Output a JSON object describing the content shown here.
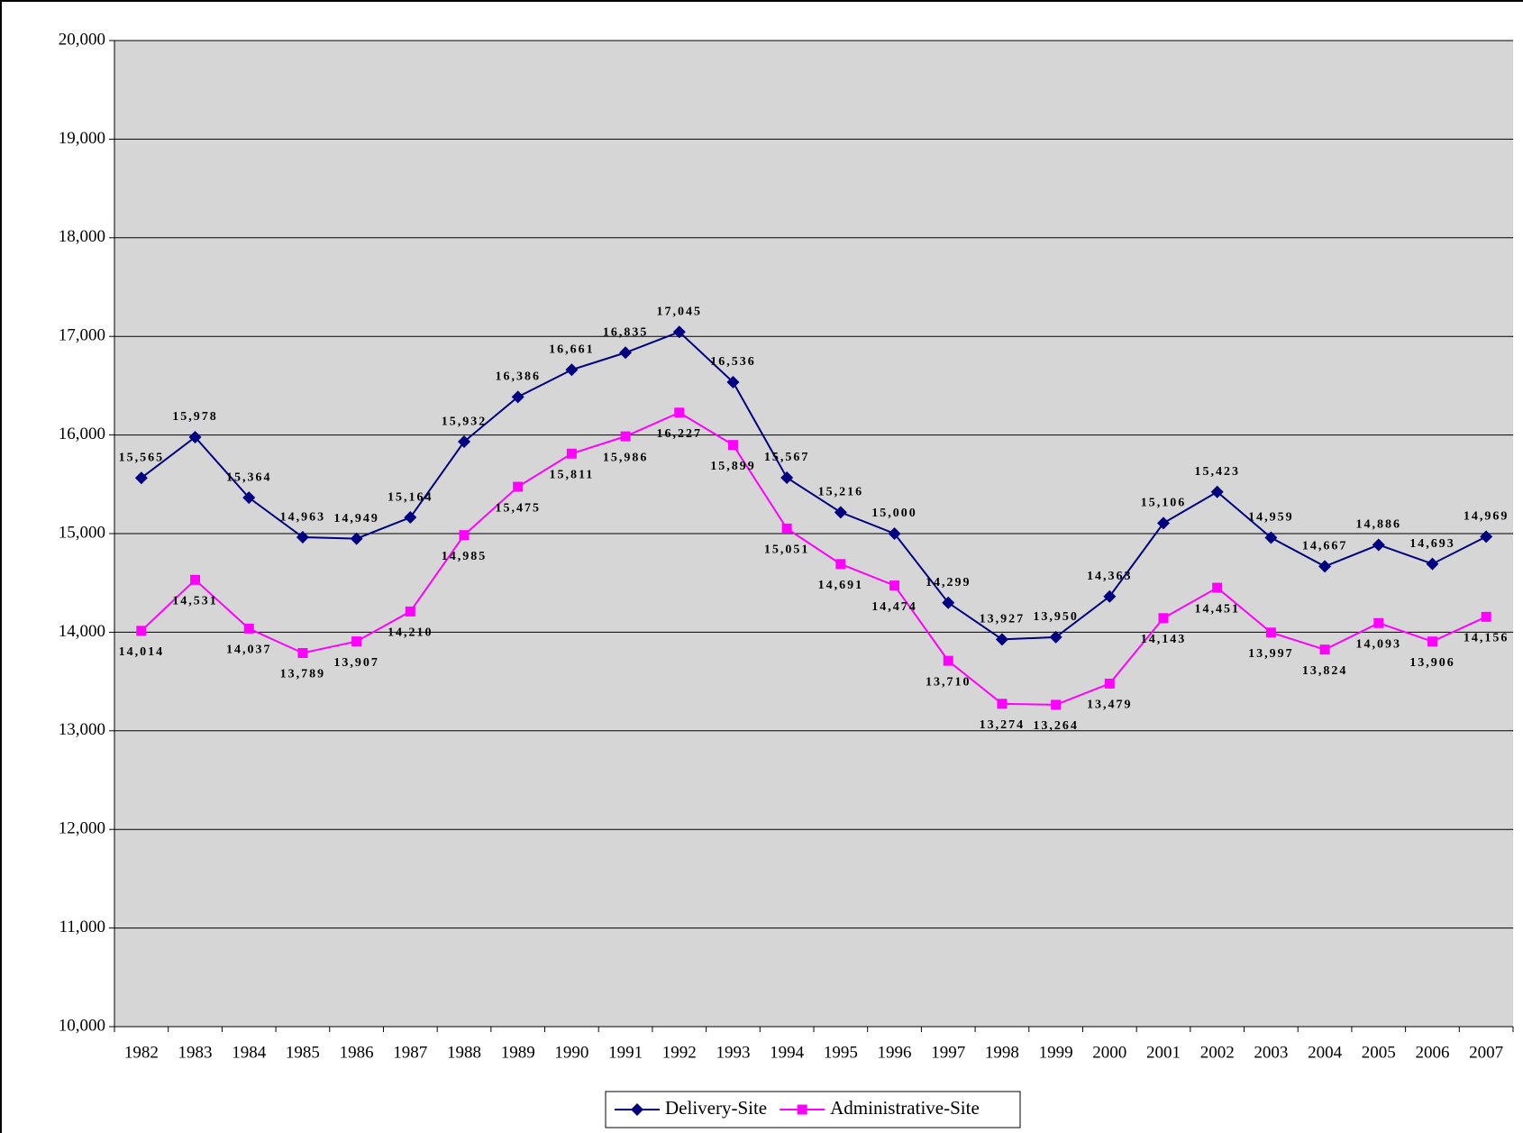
{
  "chart_data": {
    "type": "line",
    "categories": [
      "1982",
      "1983",
      "1984",
      "1985",
      "1986",
      "1987",
      "1988",
      "1989",
      "1990",
      "1991",
      "1992",
      "1993",
      "1994",
      "1995",
      "1996",
      "1997",
      "1998",
      "1999",
      "2000",
      "2001",
      "2002",
      "2003",
      "2004",
      "2005",
      "2006",
      "2007"
    ],
    "series": [
      {
        "name": "Delivery-Site",
        "color": "#000080",
        "values": [
          15565,
          15978,
          15364,
          14963,
          14949,
          15164,
          15932,
          16386,
          16661,
          16835,
          17045,
          16536,
          15567,
          15216,
          15000,
          14299,
          13927,
          13950,
          14363,
          15106,
          15423,
          14959,
          14667,
          14886,
          14693,
          14969
        ],
        "value_labels": [
          "15,565",
          "15,978",
          "15,364",
          "14,963",
          "14,949",
          "15,164",
          "15,932",
          "16,386",
          "16,661",
          "16,835",
          "17,045",
          "16,536",
          "15,567",
          "15,216",
          "15,000",
          "14,299",
          "13,927",
          "13,950",
          "14,363",
          "15,106",
          "15,423",
          "14,959",
          "14,667",
          "14,886",
          "14,693",
          "14,969"
        ]
      },
      {
        "name": "Administrative-Site",
        "color": "#ff00ff",
        "values": [
          14014,
          14531,
          14037,
          13789,
          13907,
          14210,
          14985,
          15475,
          15811,
          15986,
          16227,
          15899,
          15051,
          14691,
          14474,
          13710,
          13274,
          13264,
          13479,
          14143,
          14451,
          13997,
          13824,
          14093,
          13906,
          14156
        ],
        "value_labels": [
          "14,014",
          "14,531",
          "14,037",
          "13,789",
          "13,907",
          "14,210",
          "14,985",
          "15,475",
          "15,811",
          "15,986",
          "16,227",
          "15,899",
          "15,051",
          "14,691",
          "14,474",
          "13,710",
          "13,274",
          "13,264",
          "13,479",
          "14,143",
          "14,451",
          "13,997",
          "13,824",
          "14,093",
          "13,906",
          "14,156"
        ]
      }
    ],
    "ylim": [
      10000,
      20000
    ],
    "yticks": [
      {
        "value": 10000,
        "label": "10,000"
      },
      {
        "value": 11000,
        "label": "11,000"
      },
      {
        "value": 12000,
        "label": "12,000"
      },
      {
        "value": 13000,
        "label": "13,000"
      },
      {
        "value": 14000,
        "label": "14,000"
      },
      {
        "value": 15000,
        "label": "15,000"
      },
      {
        "value": 16000,
        "label": "16,000"
      },
      {
        "value": 17000,
        "label": "17,000"
      },
      {
        "value": 18000,
        "label": "18,000"
      },
      {
        "value": 19000,
        "label": "19,000"
      },
      {
        "value": 20000,
        "label": "20,000"
      }
    ],
    "grid": true,
    "legend": "bottom"
  }
}
